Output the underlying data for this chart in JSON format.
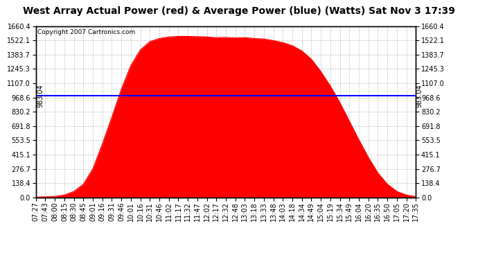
{
  "title": "West Array Actual Power (red) & Average Power (blue) (Watts) Sat Nov 3 17:39",
  "copyright": "Copyright 2007 Cartronics.com",
  "average_power": 983.04,
  "y_max": 1660.4,
  "y_ticks": [
    0.0,
    138.4,
    276.7,
    415.1,
    553.5,
    691.8,
    830.2,
    968.6,
    1107.0,
    1245.3,
    1383.7,
    1522.1,
    1660.4
  ],
  "x_labels": [
    "07:27",
    "07:43",
    "08:00",
    "08:15",
    "08:30",
    "08:45",
    "09:01",
    "09:16",
    "09:31",
    "09:46",
    "10:01",
    "10:16",
    "10:31",
    "10:46",
    "11:02",
    "11:17",
    "11:32",
    "11:47",
    "12:02",
    "12:17",
    "12:32",
    "12:48",
    "13:03",
    "13:18",
    "13:33",
    "13:48",
    "14:03",
    "14:18",
    "14:34",
    "14:49",
    "15:04",
    "15:19",
    "15:34",
    "15:49",
    "16:04",
    "16:20",
    "16:35",
    "16:50",
    "17:05",
    "17:20",
    "17:35"
  ],
  "bg_color": "#ffffff",
  "plot_bg_color": "#ffffff",
  "grid_color": "#b0b0b0",
  "fill_color": "#ff0000",
  "avg_line_color": "#0000ff",
  "title_fontsize": 10,
  "tick_fontsize": 7,
  "avg_label_fontsize": 7,
  "copyright_fontsize": 6.5,
  "power_values": [
    5,
    8,
    12,
    25,
    60,
    130,
    280,
    520,
    780,
    1050,
    1280,
    1430,
    1510,
    1540,
    1555,
    1560,
    1560,
    1558,
    1555,
    1548,
    1550,
    1545,
    1548,
    1540,
    1535,
    1520,
    1500,
    1470,
    1420,
    1340,
    1220,
    1080,
    920,
    740,
    560,
    390,
    240,
    130,
    60,
    25,
    10
  ]
}
